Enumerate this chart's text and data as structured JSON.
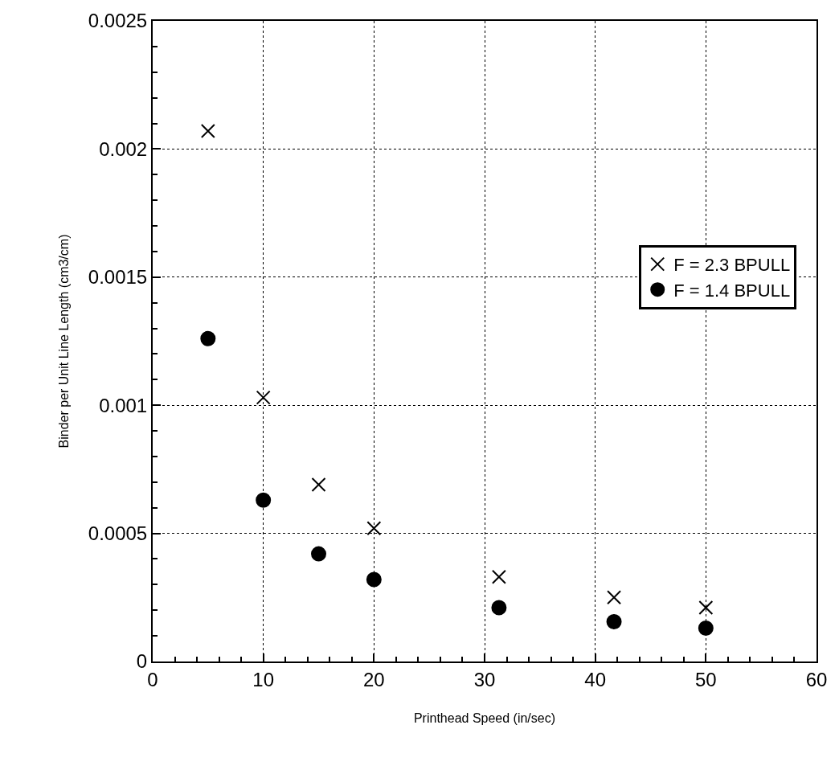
{
  "chart_data": {
    "type": "scatter",
    "xlabel": "Printhead Speed (in/sec)",
    "ylabel": "Binder per Unit Line Length (cm3/cm)",
    "x": [
      5,
      10,
      15,
      20,
      31.3,
      41.7,
      50
    ],
    "series": [
      {
        "name": "F = 2.3 BPULL",
        "color": "#000000",
        "marker": "cross",
        "values": [
          0.00207,
          0.00103,
          0.00069,
          0.00052,
          0.00033,
          0.00025,
          0.00021
        ]
      },
      {
        "name": "F = 1.4 BPULL",
        "color": "#000000",
        "marker": "circle",
        "values": [
          0.00126,
          0.00063,
          0.00042,
          0.00032,
          0.00021,
          0.000155,
          0.00013
        ]
      }
    ],
    "xlim": [
      0,
      60
    ],
    "xticks": [
      0,
      10,
      20,
      30,
      40,
      50,
      60
    ],
    "ylim": [
      0,
      0.0025
    ],
    "yticks": [
      0,
      0.0005,
      0.001,
      0.0015,
      0.002,
      0.0025
    ],
    "grid": true,
    "legend": "right"
  }
}
